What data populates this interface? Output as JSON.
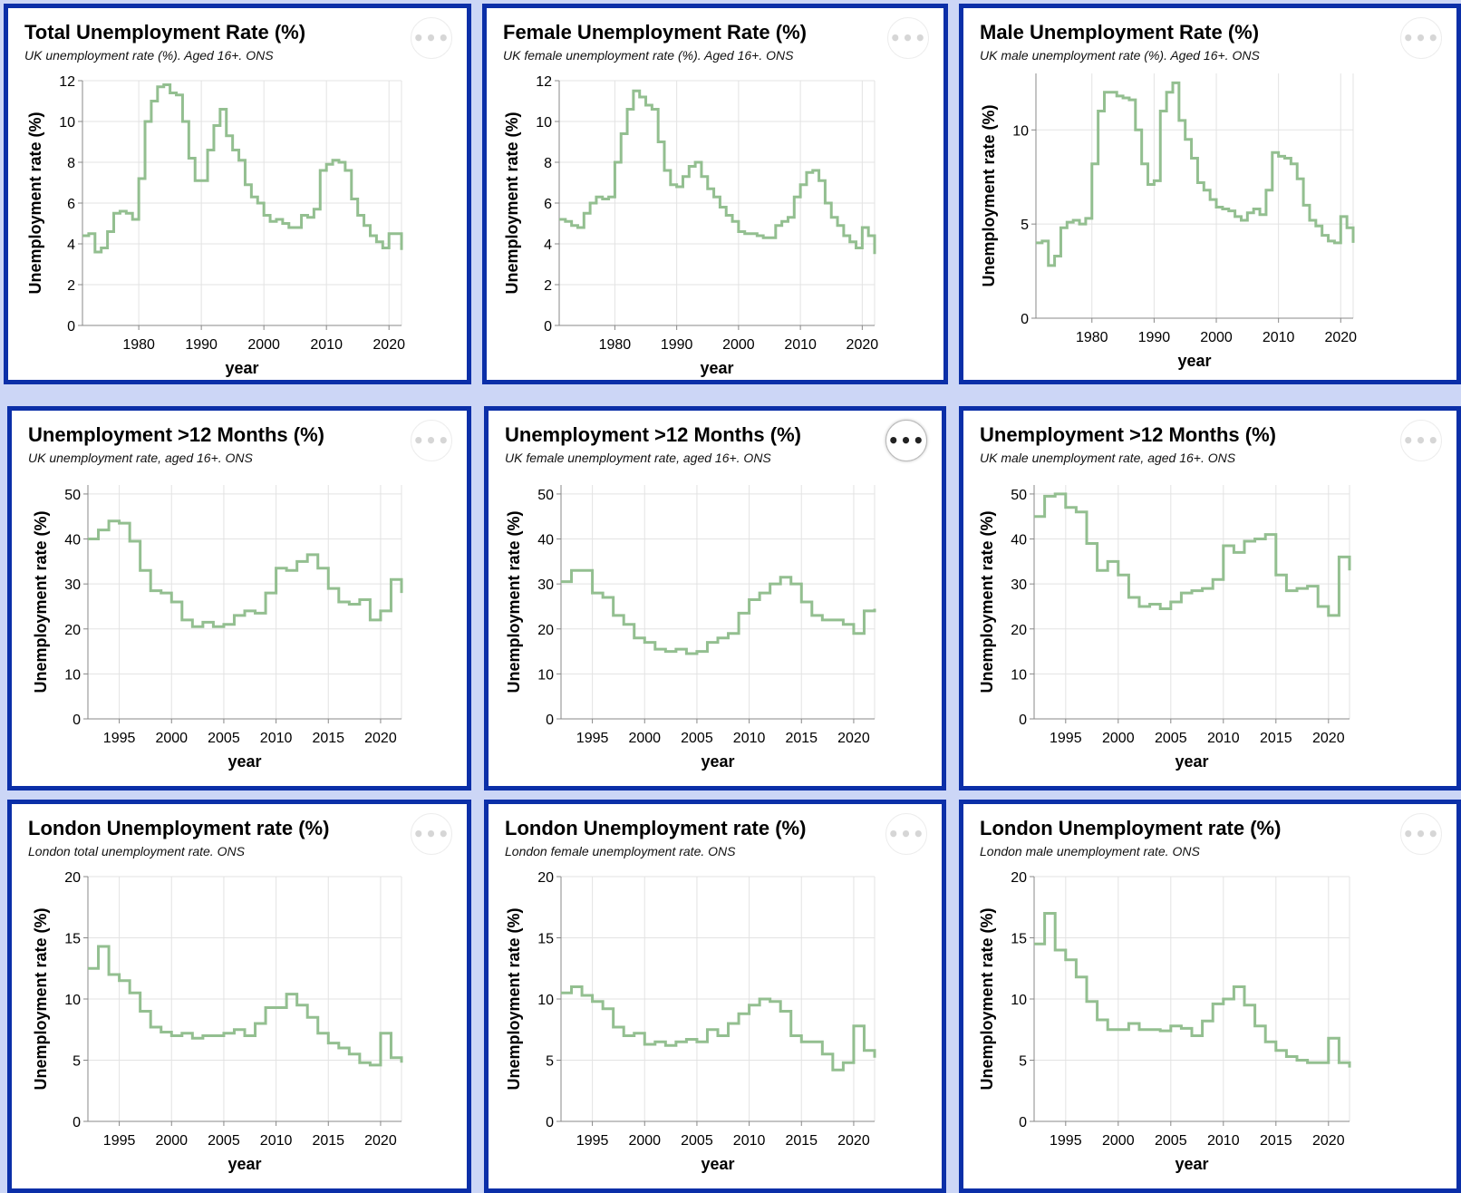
{
  "page": {
    "background": "#ccd6f6",
    "card_border_color": "#0b2fa8",
    "line_color": "#93bf90",
    "menu_icon": "more-horizontal-icon",
    "menu_glyph": "•••"
  },
  "cards": [
    {
      "title": "Total Unemployment Rate (%)",
      "subtitle": "UK unemployment rate (%). Aged 16+. ONS",
      "menu_active": false,
      "chart_data": {
        "type": "line",
        "xlabel": "year",
        "ylabel": "Unemployment rate (%)",
        "xlim": [
          1971,
          2022
        ],
        "ylim": [
          0,
          12
        ],
        "xticks": [
          1980,
          1990,
          2000,
          2010,
          2020
        ],
        "yticks": [
          0,
          2,
          4,
          6,
          8,
          10,
          12
        ],
        "grid": true,
        "interpolation": "step",
        "x": [
          1971,
          1972,
          1973,
          1974,
          1975,
          1976,
          1977,
          1978,
          1979,
          1980,
          1981,
          1982,
          1983,
          1984,
          1985,
          1986,
          1987,
          1988,
          1989,
          1990,
          1991,
          1992,
          1993,
          1994,
          1995,
          1996,
          1997,
          1998,
          1999,
          2000,
          2001,
          2002,
          2003,
          2004,
          2005,
          2006,
          2007,
          2008,
          2009,
          2010,
          2011,
          2012,
          2013,
          2014,
          2015,
          2016,
          2017,
          2018,
          2019,
          2020,
          2021,
          2022
        ],
        "y": [
          4.4,
          4.5,
          3.6,
          3.8,
          4.6,
          5.5,
          5.6,
          5.5,
          5.2,
          7.2,
          10.0,
          11.0,
          11.7,
          11.8,
          11.4,
          11.3,
          10.0,
          8.2,
          7.1,
          7.1,
          8.6,
          9.8,
          10.6,
          9.3,
          8.6,
          8.1,
          6.9,
          6.3,
          6.0,
          5.4,
          5.1,
          5.2,
          5.0,
          4.8,
          4.8,
          5.4,
          5.3,
          5.7,
          7.6,
          7.9,
          8.1,
          8.0,
          7.6,
          6.2,
          5.4,
          4.9,
          4.4,
          4.1,
          3.8,
          4.5,
          4.5,
          3.7
        ]
      }
    },
    {
      "title": "Female Unemployment Rate (%)",
      "subtitle": "UK female unemployment rate (%). Aged 16+. ONS",
      "menu_active": false,
      "chart_data": {
        "type": "line",
        "xlabel": "year",
        "ylabel": "Unemployment rate (%)",
        "xlim": [
          1971,
          2022
        ],
        "ylim": [
          0,
          12
        ],
        "xticks": [
          1980,
          1990,
          2000,
          2010,
          2020
        ],
        "yticks": [
          0,
          2,
          4,
          6,
          8,
          10,
          12
        ],
        "grid": true,
        "interpolation": "step",
        "x": [
          1971,
          1972,
          1973,
          1974,
          1975,
          1976,
          1977,
          1978,
          1979,
          1980,
          1981,
          1982,
          1983,
          1984,
          1985,
          1986,
          1987,
          1988,
          1989,
          1990,
          1991,
          1992,
          1993,
          1994,
          1995,
          1996,
          1997,
          1998,
          1999,
          2000,
          2001,
          2002,
          2003,
          2004,
          2005,
          2006,
          2007,
          2008,
          2009,
          2010,
          2011,
          2012,
          2013,
          2014,
          2015,
          2016,
          2017,
          2018,
          2019,
          2020,
          2021,
          2022
        ],
        "y": [
          5.2,
          5.1,
          4.9,
          4.8,
          5.5,
          6.0,
          6.3,
          6.2,
          6.3,
          8.0,
          9.4,
          10.6,
          11.5,
          11.2,
          10.8,
          10.6,
          9.0,
          7.6,
          6.9,
          6.8,
          7.3,
          7.8,
          8.0,
          7.3,
          6.7,
          6.3,
          5.8,
          5.4,
          5.1,
          4.6,
          4.5,
          4.5,
          4.4,
          4.3,
          4.3,
          4.9,
          5.1,
          5.3,
          6.3,
          6.9,
          7.5,
          7.6,
          7.1,
          6.0,
          5.3,
          4.9,
          4.4,
          4.1,
          3.8,
          4.8,
          4.4,
          3.5
        ]
      }
    },
    {
      "title": "Male Unemployment Rate (%)",
      "subtitle": "UK male unemployment rate (%). Aged 16+. ONS",
      "menu_active": false,
      "chart_data": {
        "type": "line",
        "xlabel": "year",
        "ylabel": "Unemployment rate (%)",
        "xlim": [
          1971,
          2022
        ],
        "ylim": [
          0,
          13
        ],
        "xticks": [
          1980,
          1990,
          2000,
          2010,
          2020
        ],
        "yticks": [
          0,
          5,
          10
        ],
        "grid": true,
        "interpolation": "step",
        "x": [
          1971,
          1972,
          1973,
          1974,
          1975,
          1976,
          1977,
          1978,
          1979,
          1980,
          1981,
          1982,
          1983,
          1984,
          1985,
          1986,
          1987,
          1988,
          1989,
          1990,
          1991,
          1992,
          1993,
          1994,
          1995,
          1996,
          1997,
          1998,
          1999,
          2000,
          2001,
          2002,
          2003,
          2004,
          2005,
          2006,
          2007,
          2008,
          2009,
          2010,
          2011,
          2012,
          2013,
          2014,
          2015,
          2016,
          2017,
          2018,
          2019,
          2020,
          2021,
          2022
        ],
        "y": [
          4.0,
          4.1,
          2.8,
          3.3,
          4.8,
          5.1,
          5.2,
          5.0,
          5.3,
          8.2,
          11.0,
          12.0,
          12.0,
          11.8,
          11.7,
          11.6,
          10.0,
          8.2,
          7.1,
          7.3,
          11.0,
          12.0,
          12.5,
          10.5,
          9.5,
          8.5,
          7.2,
          6.8,
          6.3,
          5.9,
          5.8,
          5.7,
          5.4,
          5.2,
          5.6,
          5.8,
          5.5,
          6.8,
          8.8,
          8.6,
          8.5,
          8.2,
          7.4,
          6.0,
          5.2,
          4.9,
          4.4,
          4.1,
          4.0,
          5.4,
          4.8,
          4.0
        ]
      }
    },
    {
      "title": "Unemployment >12 Months (%)",
      "subtitle": "UK unemployment rate, aged 16+. ONS",
      "menu_active": false,
      "chart_data": {
        "type": "line",
        "xlabel": "year",
        "ylabel": "Unemployment rate (%)",
        "xlim": [
          1992,
          2022
        ],
        "ylim": [
          0,
          52
        ],
        "xticks": [
          1995,
          2000,
          2005,
          2010,
          2015,
          2020
        ],
        "yticks": [
          0,
          10,
          20,
          30,
          40,
          50
        ],
        "grid": true,
        "interpolation": "step",
        "x": [
          1992,
          1993,
          1994,
          1995,
          1996,
          1997,
          1998,
          1999,
          2000,
          2001,
          2002,
          2003,
          2004,
          2005,
          2006,
          2007,
          2008,
          2009,
          2010,
          2011,
          2012,
          2013,
          2014,
          2015,
          2016,
          2017,
          2018,
          2019,
          2020,
          2021,
          2022
        ],
        "y": [
          40,
          42,
          44,
          43.5,
          39.5,
          33,
          28.5,
          28,
          26,
          22,
          20.5,
          21.5,
          20.5,
          21,
          23,
          24,
          23.5,
          28,
          33.5,
          33,
          35,
          36.5,
          33.5,
          29,
          26,
          25.5,
          26.5,
          22,
          24,
          31,
          28
        ]
      }
    },
    {
      "title": "Unemployment >12 Months (%)",
      "subtitle": "UK female unemployment rate, aged 16+. ONS",
      "menu_active": true,
      "chart_data": {
        "type": "line",
        "xlabel": "year",
        "ylabel": "Unemployment rate (%)",
        "xlim": [
          1992,
          2022
        ],
        "ylim": [
          0,
          52
        ],
        "xticks": [
          1995,
          2000,
          2005,
          2010,
          2015,
          2020
        ],
        "yticks": [
          0,
          10,
          20,
          30,
          40,
          50
        ],
        "grid": true,
        "interpolation": "step",
        "x": [
          1992,
          1993,
          1994,
          1995,
          1996,
          1997,
          1998,
          1999,
          2000,
          2001,
          2002,
          2003,
          2004,
          2005,
          2006,
          2007,
          2008,
          2009,
          2010,
          2011,
          2012,
          2013,
          2014,
          2015,
          2016,
          2017,
          2018,
          2019,
          2020,
          2021,
          2022
        ],
        "y": [
          30.5,
          33,
          33,
          28,
          27,
          23,
          21,
          18,
          17,
          15.5,
          15,
          15.5,
          14.5,
          15,
          17,
          18,
          19,
          23.5,
          26.5,
          28,
          30,
          31.5,
          30,
          26,
          23,
          22,
          22,
          21,
          19,
          24,
          24.5
        ]
      }
    },
    {
      "title": "Unemployment >12 Months (%)",
      "subtitle": "UK male unemployment rate, aged 16+. ONS",
      "menu_active": false,
      "chart_data": {
        "type": "line",
        "xlabel": "year",
        "ylabel": "Unemployment rate (%)",
        "xlim": [
          1992,
          2022
        ],
        "ylim": [
          0,
          52
        ],
        "xticks": [
          1995,
          2000,
          2005,
          2010,
          2015,
          2020
        ],
        "yticks": [
          0,
          10,
          20,
          30,
          40,
          50
        ],
        "grid": true,
        "interpolation": "step",
        "x": [
          1992,
          1993,
          1994,
          1995,
          1996,
          1997,
          1998,
          1999,
          2000,
          2001,
          2002,
          2003,
          2004,
          2005,
          2006,
          2007,
          2008,
          2009,
          2010,
          2011,
          2012,
          2013,
          2014,
          2015,
          2016,
          2017,
          2018,
          2019,
          2020,
          2021,
          2022
        ],
        "y": [
          45,
          49.5,
          50,
          47,
          46,
          39,
          33,
          35,
          32,
          27,
          25,
          25.5,
          24.5,
          26,
          28,
          28.5,
          29,
          31,
          38.5,
          37,
          39.5,
          40,
          41,
          32,
          28.5,
          29,
          29.5,
          25,
          23,
          36,
          33
        ]
      }
    },
    {
      "title": "London Unemployment rate (%)",
      "subtitle": "London total unemployment rate. ONS",
      "menu_active": false,
      "chart_data": {
        "type": "line",
        "xlabel": "year",
        "ylabel": "Unemployment rate (%)",
        "xlim": [
          1992,
          2022
        ],
        "ylim": [
          0,
          20
        ],
        "xticks": [
          1995,
          2000,
          2005,
          2010,
          2015,
          2020
        ],
        "yticks": [
          0,
          5,
          10,
          15,
          20
        ],
        "grid": true,
        "interpolation": "step",
        "x": [
          1992,
          1993,
          1994,
          1995,
          1996,
          1997,
          1998,
          1999,
          2000,
          2001,
          2002,
          2003,
          2004,
          2005,
          2006,
          2007,
          2008,
          2009,
          2010,
          2011,
          2012,
          2013,
          2014,
          2015,
          2016,
          2017,
          2018,
          2019,
          2020,
          2021,
          2022
        ],
        "y": [
          12.5,
          14.3,
          12.0,
          11.5,
          10.5,
          9.0,
          7.7,
          7.3,
          7.0,
          7.2,
          6.8,
          7.0,
          7.0,
          7.2,
          7.5,
          7.0,
          8.0,
          9.3,
          9.3,
          10.4,
          9.5,
          8.5,
          7.2,
          6.4,
          6.0,
          5.5,
          4.8,
          4.6,
          7.2,
          5.2,
          4.8
        ]
      }
    },
    {
      "title": "London Unemployment rate (%)",
      "subtitle": "London female unemployment rate. ONS",
      "menu_active": false,
      "chart_data": {
        "type": "line",
        "xlabel": "year",
        "ylabel": "Unemployment rate (%)",
        "xlim": [
          1992,
          2022
        ],
        "ylim": [
          0,
          20
        ],
        "xticks": [
          1995,
          2000,
          2005,
          2010,
          2015,
          2020
        ],
        "yticks": [
          0,
          5,
          10,
          15,
          20
        ],
        "grid": true,
        "interpolation": "step",
        "x": [
          1992,
          1993,
          1994,
          1995,
          1996,
          1997,
          1998,
          1999,
          2000,
          2001,
          2002,
          2003,
          2004,
          2005,
          2006,
          2007,
          2008,
          2009,
          2010,
          2011,
          2012,
          2013,
          2014,
          2015,
          2016,
          2017,
          2018,
          2019,
          2020,
          2021,
          2022
        ],
        "y": [
          10.5,
          11.0,
          10.3,
          9.8,
          9.2,
          7.7,
          7.0,
          7.2,
          6.3,
          6.5,
          6.2,
          6.5,
          6.7,
          6.5,
          7.5,
          7.0,
          8.0,
          8.8,
          9.5,
          10.0,
          9.8,
          9.0,
          7.0,
          6.5,
          6.5,
          5.5,
          4.2,
          4.8,
          7.8,
          5.8,
          5.2
        ]
      }
    },
    {
      "title": "London Unemployment rate (%)",
      "subtitle": "London male unemployment rate. ONS",
      "menu_active": false,
      "chart_data": {
        "type": "line",
        "xlabel": "year",
        "ylabel": "Unemployment rate (%)",
        "xlim": [
          1992,
          2022
        ],
        "ylim": [
          0,
          20
        ],
        "xticks": [
          1995,
          2000,
          2005,
          2010,
          2015,
          2020
        ],
        "yticks": [
          0,
          5,
          10,
          15,
          20
        ],
        "grid": true,
        "interpolation": "step",
        "x": [
          1992,
          1993,
          1994,
          1995,
          1996,
          1997,
          1998,
          1999,
          2000,
          2001,
          2002,
          2003,
          2004,
          2005,
          2006,
          2007,
          2008,
          2009,
          2010,
          2011,
          2012,
          2013,
          2014,
          2015,
          2016,
          2017,
          2018,
          2019,
          2020,
          2021,
          2022
        ],
        "y": [
          14.5,
          17.0,
          14.0,
          13.2,
          11.8,
          9.8,
          8.3,
          7.5,
          7.5,
          8.0,
          7.5,
          7.5,
          7.4,
          7.8,
          7.6,
          7.0,
          8.2,
          9.6,
          10.0,
          11.0,
          9.5,
          7.8,
          6.5,
          5.8,
          5.3,
          5.0,
          4.8,
          4.8,
          6.8,
          4.8,
          4.4
        ]
      }
    }
  ]
}
